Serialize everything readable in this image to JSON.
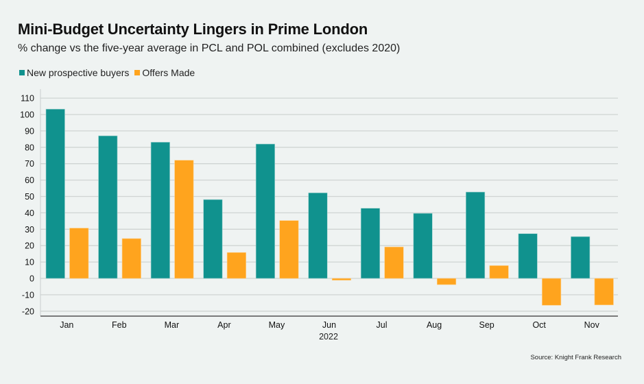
{
  "chart_data": {
    "type": "bar",
    "title": "Mini-Budget Uncertainty Lingers in Prime London",
    "subtitle": "% change vs the five-year average in PCL and POL combined (excludes 2020)",
    "xlabel": "2022",
    "ylabel": "",
    "categories": [
      "Jan",
      "Feb",
      "Mar",
      "Apr",
      "May",
      "Jun",
      "Jul",
      "Aug",
      "Sep",
      "Oct",
      "Nov"
    ],
    "series": [
      {
        "name": "New prospective buyers",
        "color": "#10928e",
        "values": [
          103.3,
          87.0,
          83.1,
          48.1,
          82.0,
          52.2,
          42.8,
          39.7,
          52.7,
          27.3,
          25.5
        ]
      },
      {
        "name": "Offers Made",
        "color": "#ffa41e",
        "values": [
          30.7,
          24.3,
          72.1,
          15.8,
          35.3,
          -1.1,
          19.2,
          -3.8,
          7.8,
          -16.4,
          -16.2
        ]
      }
    ],
    "ylim": [
      -23,
      114
    ],
    "yticks": [
      -20,
      -10,
      0,
      10,
      20,
      30,
      40,
      50,
      60,
      70,
      80,
      90,
      100,
      110
    ],
    "grid": true,
    "legend_position": "top-left",
    "source": "Source: Knight Frank Research"
  }
}
